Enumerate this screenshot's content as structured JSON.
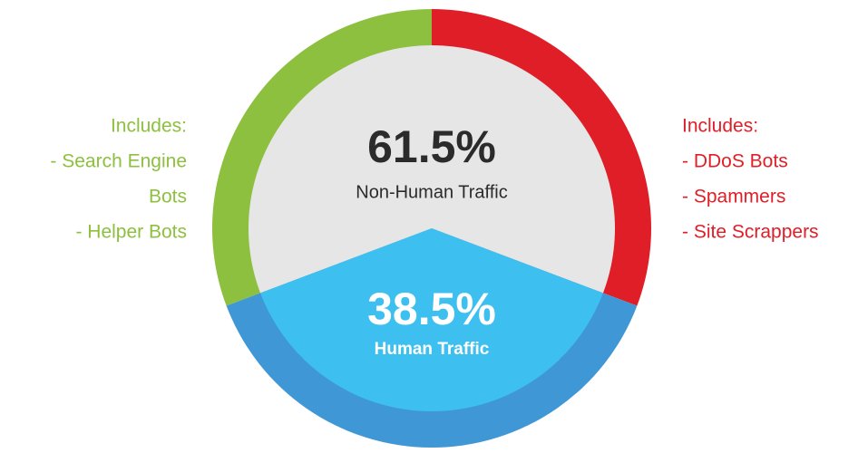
{
  "chart_data": {
    "type": "donut",
    "categories": [
      "Non-Human Traffic",
      "Human Traffic"
    ],
    "values": [
      61.5,
      38.5
    ],
    "value_labels": [
      "61.5%",
      "38.5%"
    ],
    "colors": [
      "#e6e6e6",
      "#3dbfef"
    ],
    "ring_colors": [
      [
        "#8dc03f",
        "#e01e27"
      ],
      [
        "#3f97d6"
      ]
    ],
    "label_colors": [
      "#2b2b2b",
      "#ffffff"
    ],
    "annotations": [
      {
        "side": "left",
        "color": "#8dc03f",
        "lines": [
          "Includes:",
          "- Search Engine",
          "Bots",
          "- Helper Bots"
        ]
      },
      {
        "side": "right",
        "color": "#e01e27",
        "lines": [
          "Includes:",
          "- DDoS Bots",
          "- Spammers",
          "- Site Scrappers"
        ]
      }
    ]
  }
}
